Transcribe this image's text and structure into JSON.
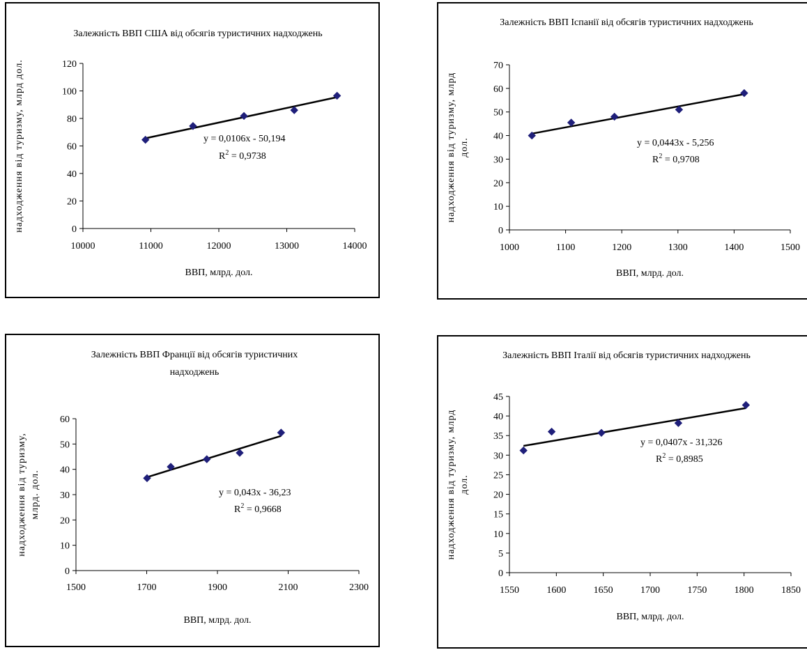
{
  "chart_data": [
    {
      "type": "scatter",
      "title": "Залежність ВВП США від обсягів туристичних надходжень",
      "xlabel": "ВВП, млрд. дол.",
      "ylabel": "надходження від туризму, млрд дол.",
      "xlim": [
        10000,
        14000
      ],
      "ylim": [
        0,
        120
      ],
      "xticks": [
        "10000",
        "11000",
        "12000",
        "13000",
        "14000"
      ],
      "yticks": [
        "0",
        "20",
        "40",
        "60",
        "80",
        "100",
        "120"
      ],
      "points": [
        {
          "x": 10920,
          "y": 64.5
        },
        {
          "x": 11620,
          "y": 74.5
        },
        {
          "x": 12370,
          "y": 81.8
        },
        {
          "x": 13110,
          "y": 86
        },
        {
          "x": 13740,
          "y": 96.5
        }
      ],
      "trendline": {
        "slope": 0.0106,
        "intercept": -50.194
      },
      "equation": "y = 0,0106x - 50,194",
      "r2_prefix": "R",
      "r2_sup": "2",
      "r2_value": " = 0,9738",
      "grid": false
    },
    {
      "type": "scatter",
      "title": "Залежність ВВП Іспанії від обсягів туристичних надходжень",
      "xlabel": "ВВП, млрд. дол.",
      "ylabel": "надходження від туризму, млрд дол.",
      "xlim": [
        1000,
        1500
      ],
      "ylim": [
        0,
        70
      ],
      "xticks": [
        "1000",
        "1100",
        "1200",
        "1300",
        "1400",
        "1500"
      ],
      "yticks": [
        "0",
        "10",
        "20",
        "30",
        "40",
        "50",
        "60",
        "70"
      ],
      "points": [
        {
          "x": 1040,
          "y": 40
        },
        {
          "x": 1110,
          "y": 45.5
        },
        {
          "x": 1187,
          "y": 48
        },
        {
          "x": 1302,
          "y": 51
        },
        {
          "x": 1418,
          "y": 58
        }
      ],
      "trendline": {
        "slope": 0.0443,
        "intercept": -5.256
      },
      "equation": "y = 0,0443x - 5,256",
      "r2_prefix": "R",
      "r2_sup": "2",
      "r2_value": " = 0,9708",
      "grid": false
    },
    {
      "type": "scatter",
      "title": "Залежність ВВП Франції від обсягів туристичних надходжень",
      "xlabel": "ВВП, млрд. дол.",
      "ylabel": "надходження від туризму, млрд. дол.",
      "xlim": [
        1500,
        2300
      ],
      "ylim": [
        0,
        60
      ],
      "xticks": [
        "1500",
        "1700",
        "1900",
        "2100",
        "2300"
      ],
      "yticks": [
        "0",
        "10",
        "20",
        "30",
        "40",
        "50",
        "60"
      ],
      "points": [
        {
          "x": 1701,
          "y": 36.5
        },
        {
          "x": 1768,
          "y": 41
        },
        {
          "x": 1870,
          "y": 44
        },
        {
          "x": 1963,
          "y": 46.5
        },
        {
          "x": 2080,
          "y": 54.5
        }
      ],
      "trendline": {
        "slope": 0.043,
        "intercept": -36.23
      },
      "equation": "y = 0,043x - 36,23",
      "r2_prefix": "R",
      "r2_sup": "2",
      "r2_value": " = 0,9668",
      "grid": false
    },
    {
      "type": "scatter",
      "title": "Залежність ВВП Італії від обсягів туристичних надходжень",
      "xlabel": "ВВП, млрд. дол.",
      "ylabel": "надходження від туризму, млрд дол.",
      "xlim": [
        1550,
        1850
      ],
      "ylim": [
        0,
        45
      ],
      "xticks": [
        "1550",
        "1600",
        "1650",
        "1700",
        "1750",
        "1800",
        "1850"
      ],
      "yticks": [
        "0",
        "5",
        "10",
        "15",
        "20",
        "25",
        "30",
        "35",
        "40",
        "45"
      ],
      "points": [
        {
          "x": 1565,
          "y": 31.2
        },
        {
          "x": 1595,
          "y": 36
        },
        {
          "x": 1648,
          "y": 35.7
        },
        {
          "x": 1730,
          "y": 38.2
        },
        {
          "x": 1802,
          "y": 42.8
        }
      ],
      "trendline": {
        "slope": 0.0407,
        "intercept": -31.326
      },
      "equation": "y = 0,0407x - 31,326",
      "r2_prefix": "R",
      "r2_sup": "2",
      "r2_value": " = 0,8985",
      "grid": false
    }
  ],
  "colors": {
    "marker": "#1f1f7a",
    "trendline": "#000000",
    "axis": "#000000"
  }
}
